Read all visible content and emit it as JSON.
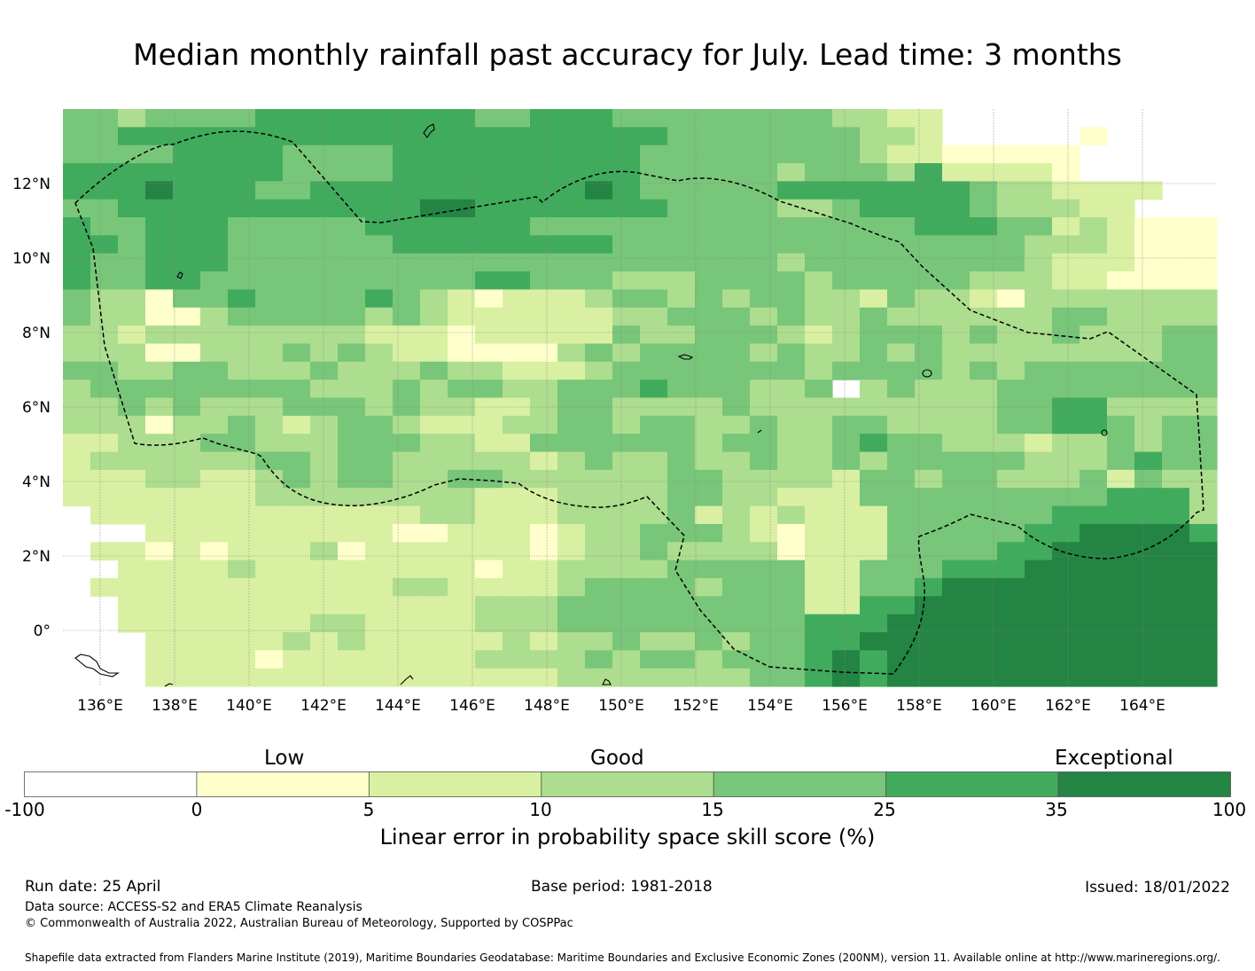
{
  "title": "Median monthly rainfall past accuracy for July. Lead time: 3 months",
  "map": {
    "x_ticks": [
      "136°E",
      "138°E",
      "140°E",
      "142°E",
      "144°E",
      "146°E",
      "148°E",
      "150°E",
      "152°E",
      "154°E",
      "156°E",
      "158°E",
      "160°E",
      "162°E",
      "164°E"
    ],
    "y_ticks": [
      "12°N",
      "10°N",
      "8°N",
      "6°N",
      "4°N",
      "2°N",
      "0°"
    ],
    "lon_range": [
      135,
      166
    ],
    "lat_range": [
      -1.5,
      14
    ],
    "grid_resolution_deg": 0.833,
    "level_colors": [
      "#ffffff",
      "#ffffcc",
      "#d9f0a3",
      "#addd8e",
      "#78c679",
      "#41ab5d",
      "#238443"
    ],
    "rows": [
      "443444455555555445554444444433220000000000",
      "445555555555555555555544444443320000010000",
      "444455554444555555555444444443221111100000",
      "555555554444555555555444443444352222100000",
      "555655544555555555565444445555555433222200",
      "445555555555566555555544443345555433322000",
      "544555444445555554444444444444455544232111",
      "554555444444555555554444444444444443332111",
      "544555444444444444444444443444444443222111",
      "544554444444444554443334444344444333221111",
      "433144544445432122234434344332433213333333",
      "433113444443432222223344434334333333443333",
      "332333333332221222224334443234443433433344",
      "333113334343221111343444434334343333333344",
      "443344333433343322234444444344443434444444",
      "344444444333434433444544433403433344444444",
      "334343334443433223443333433333333344553333",
      "333133432344322233443443343344333344554344",
      "223334433344433224444443443345443332334344",
      "233333344344333332343343343343444443334544",
      "222332234344334433333344333324434433342433",
      "222222233333333222333344332224444444445553",
      "022222222222233222333342323222444444555553",
      "000222222222112221233444321222444445566665",
      "022121222312222221233433331222444455666666",
      "002222322222222122333344444224445556666666",
      "022222222222332222344443444224456666666666",
      "002222222222222333444444444225566666666666",
      "002222222332222333444444444555666666666666",
      "000222223232222232334334344556666666666666",
      "000222212222222333343443444565666666666666",
      "000222222222222222333333344565666666666666"
    ],
    "land_features": [
      "Guam",
      "Pohnpei",
      "Kosrae",
      "Chuuk Lagoon",
      "Palau",
      "Papua New Guinea islands"
    ],
    "eez_boundary": "dashed"
  },
  "colorbar": {
    "categories": [
      "Low",
      "Good",
      "Exceptional"
    ],
    "ticks": [
      "-100",
      "0",
      "5",
      "10",
      "15",
      "25",
      "35",
      "100"
    ],
    "colors": [
      "#ffffff",
      "#ffffcc",
      "#d9f0a3",
      "#addd8e",
      "#78c679",
      "#41ab5d",
      "#238443"
    ],
    "label": "Linear error in probability space skill score (%)"
  },
  "footer": {
    "run_date": "Run date: 25 April",
    "base_period": "Base period: 1981-2018",
    "issued": "Issued: 18/01/2022",
    "data_source": "Data source: ACCESS-S2 and ERA5 Climate Reanalysis",
    "copyright": "© Commonwealth of Australia 2022, Australian Bureau of Meteorology, Supported by COSPPac",
    "shapefile": "Shapefile data extracted from Flanders Marine Institute (2019), Maritime Boundaries Geodatabase: Maritime Boundaries and Exclusive Economic Zones (200NM), version 11. Available online at http://www.marineregions.org/."
  }
}
